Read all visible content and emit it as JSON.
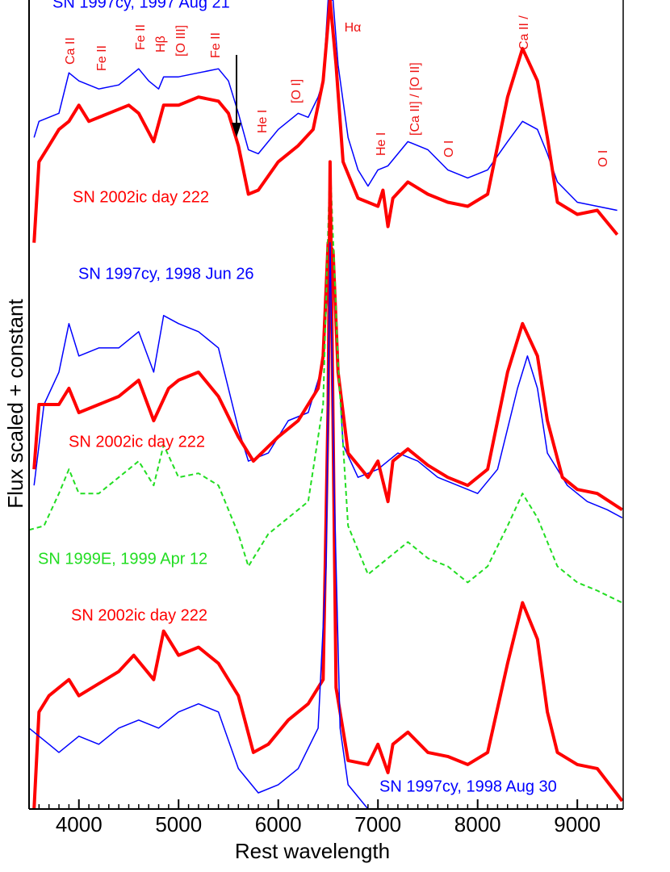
{
  "chart_data": {
    "type": "line",
    "x_label": "Rest wavelength",
    "y_label": "Flux scaled + constant",
    "xlim": [
      3500,
      9460
    ],
    "ylim": [
      0,
      1000
    ],
    "xticks": [
      4000,
      5000,
      6000,
      7000,
      8000,
      9000
    ],
    "xminorticks": [
      3600,
      3700,
      3800,
      3900,
      4100,
      4200,
      4300,
      4400,
      4500,
      4600,
      4700,
      4800,
      4900,
      5100,
      5200,
      5300,
      5400,
      5500,
      5600,
      5700,
      5800,
      5900,
      6100,
      6200,
      6300,
      6400,
      6500,
      6600,
      6700,
      6800,
      6900,
      7100,
      7200,
      7300,
      7400,
      7500,
      7600,
      7700,
      7800,
      7900,
      8100,
      8200,
      8300,
      8400,
      8500,
      8600,
      8700,
      8800,
      8900,
      9100,
      9200,
      9300,
      9400
    ],
    "series": [
      {
        "name": "SN 1997cy, 1997 Aug 21",
        "color": "#0000ff",
        "x": [
          3550,
          3600,
          3800,
          3900,
          4000,
          4200,
          4400,
          4600,
          4700,
          4800,
          4850,
          5000,
          5200,
          5400,
          5500,
          5600,
          5700,
          5800,
          6000,
          6200,
          6300,
          6400,
          6450,
          6500,
          6550,
          6600,
          6700,
          6800,
          6900,
          7000,
          7100,
          7300,
          7500,
          7700,
          7900,
          8100,
          8300,
          8450,
          8600,
          8700,
          8800,
          9000,
          9200,
          9400
        ],
        "values": [
          830,
          850,
          860,
          910,
          900,
          890,
          895,
          915,
          900,
          890,
          905,
          905,
          910,
          915,
          900,
          860,
          815,
          810,
          840,
          860,
          855,
          880,
          900,
          1000,
          1000,
          920,
          830,
          790,
          770,
          790,
          795,
          825,
          815,
          790,
          780,
          790,
          825,
          850,
          840,
          810,
          775,
          750,
          745,
          740
        ]
      },
      {
        "name": "SN 2002ic day 222",
        "color": "#ff0000",
        "x": [
          3550,
          3600,
          3700,
          3800,
          3900,
          4000,
          4100,
          4300,
          4500,
          4600,
          4750,
          4850,
          5000,
          5200,
          5400,
          5500,
          5600,
          5700,
          5800,
          6000,
          6200,
          6350,
          6450,
          6520,
          6580,
          6650,
          6800,
          7000,
          7050,
          7100,
          7150,
          7300,
          7500,
          7700,
          7900,
          8100,
          8300,
          8450,
          8600,
          8700,
          8800,
          9000,
          9200,
          9400
        ],
        "values": [
          700,
          800,
          820,
          840,
          850,
          870,
          850,
          860,
          870,
          860,
          825,
          870,
          870,
          880,
          875,
          860,
          820,
          760,
          765,
          800,
          820,
          840,
          900,
          1000,
          920,
          800,
          755,
          745,
          765,
          720,
          755,
          775,
          760,
          750,
          745,
          760,
          880,
          940,
          900,
          830,
          750,
          735,
          740,
          710
        ]
      },
      {
        "name": "SN 1997cy, 1998 Jun 26",
        "color": "#0000ff",
        "x": [
          3550,
          3650,
          3800,
          3900,
          4000,
          4200,
          4400,
          4600,
          4750,
          4850,
          5000,
          5200,
          5400,
          5600,
          5700,
          5900,
          6100,
          6300,
          6450,
          6520,
          6580,
          6650,
          6800,
          7000,
          7200,
          7400,
          7600,
          7800,
          8000,
          8200,
          8400,
          8500,
          8600,
          8700,
          8900,
          9100,
          9300,
          9450
        ],
        "values": [
          400,
          500,
          540,
          600,
          560,
          570,
          570,
          590,
          540,
          610,
          600,
          590,
          570,
          470,
          430,
          440,
          480,
          490,
          550,
          700,
          600,
          450,
          410,
          420,
          440,
          430,
          410,
          400,
          390,
          420,
          520,
          560,
          520,
          440,
          400,
          380,
          370,
          360
        ]
      },
      {
        "name": "SN 2002ic day 222",
        "color": "#ff0000",
        "x": [
          3550,
          3600,
          3800,
          3900,
          4000,
          4200,
          4400,
          4600,
          4750,
          4900,
          5000,
          5200,
          5400,
          5600,
          5750,
          6000,
          6200,
          6400,
          6450,
          6500,
          6550,
          6600,
          6700,
          6900,
          7000,
          7100,
          7150,
          7300,
          7500,
          7700,
          7900,
          8100,
          8300,
          8450,
          8600,
          8700,
          8850,
          9000,
          9200,
          9450
        ],
        "values": [
          420,
          500,
          500,
          520,
          490,
          500,
          510,
          530,
          480,
          520,
          530,
          540,
          510,
          460,
          430,
          460,
          480,
          520,
          560,
          700,
          690,
          540,
          440,
          410,
          430,
          380,
          430,
          445,
          425,
          410,
          400,
          420,
          540,
          600,
          560,
          480,
          410,
          395,
          390,
          370
        ]
      },
      {
        "name": "SN 1999E, 1999 Apr 12",
        "color": "#22dd22",
        "dashed": true,
        "x": [
          3500,
          3650,
          3800,
          3900,
          4000,
          4200,
          4400,
          4600,
          4750,
          4850,
          5000,
          5200,
          5400,
          5600,
          5700,
          5900,
          6100,
          6300,
          6450,
          6520,
          6600,
          6700,
          6900,
          7100,
          7300,
          7500,
          7700,
          7900,
          8100,
          8300,
          8450,
          8600,
          8800,
          9000,
          9200,
          9450
        ],
        "values": [
          345,
          350,
          390,
          420,
          390,
          390,
          410,
          430,
          400,
          450,
          410,
          415,
          400,
          340,
          300,
          340,
          360,
          380,
          500,
          800,
          550,
          350,
          290,
          310,
          330,
          310,
          300,
          280,
          300,
          350,
          390,
          360,
          300,
          280,
          270,
          255
        ]
      },
      {
        "name": "SN 2002ic day 222",
        "color": "#ff0000",
        "x": [
          3550,
          3600,
          3700,
          3800,
          3900,
          4000,
          4200,
          4400,
          4550,
          4750,
          4850,
          5000,
          5200,
          5400,
          5600,
          5750,
          5900,
          6100,
          6300,
          6450,
          6500,
          6520,
          6580,
          6700,
          6900,
          7000,
          7100,
          7150,
          7300,
          7500,
          7700,
          7900,
          8100,
          8300,
          8450,
          8600,
          8700,
          8800,
          9000,
          9200,
          9450
        ],
        "values": [
          0,
          120,
          140,
          150,
          160,
          140,
          155,
          170,
          190,
          160,
          220,
          190,
          200,
          180,
          140,
          70,
          80,
          110,
          130,
          160,
          500,
          800,
          150,
          60,
          55,
          80,
          45,
          80,
          95,
          70,
          65,
          55,
          70,
          180,
          255,
          210,
          120,
          70,
          55,
          50,
          10
        ]
      },
      {
        "name": "SN 1997cy, 1998 Aug 30",
        "color": "#0000ff",
        "x": [
          3500,
          3700,
          3800,
          4000,
          4200,
          4400,
          4600,
          4800,
          5000,
          5200,
          5400,
          5600,
          5800,
          6000,
          6200,
          6400,
          6480,
          6520,
          6560,
          6620,
          6700,
          6900
        ],
        "values": [
          100,
          80,
          70,
          90,
          80,
          100,
          110,
          100,
          120,
          130,
          120,
          50,
          20,
          30,
          50,
          100,
          300,
          700,
          400,
          100,
          30,
          0
        ]
      }
    ],
    "annotations": [
      "Ca II",
      "Fe II",
      "Fe II",
      "Hβ",
      "[O III]",
      "Fe II",
      "He I",
      "[O I]",
      "Hα",
      "He I",
      "[Ca II] / [O II]",
      "O I",
      "Ca II /",
      "O I"
    ]
  }
}
